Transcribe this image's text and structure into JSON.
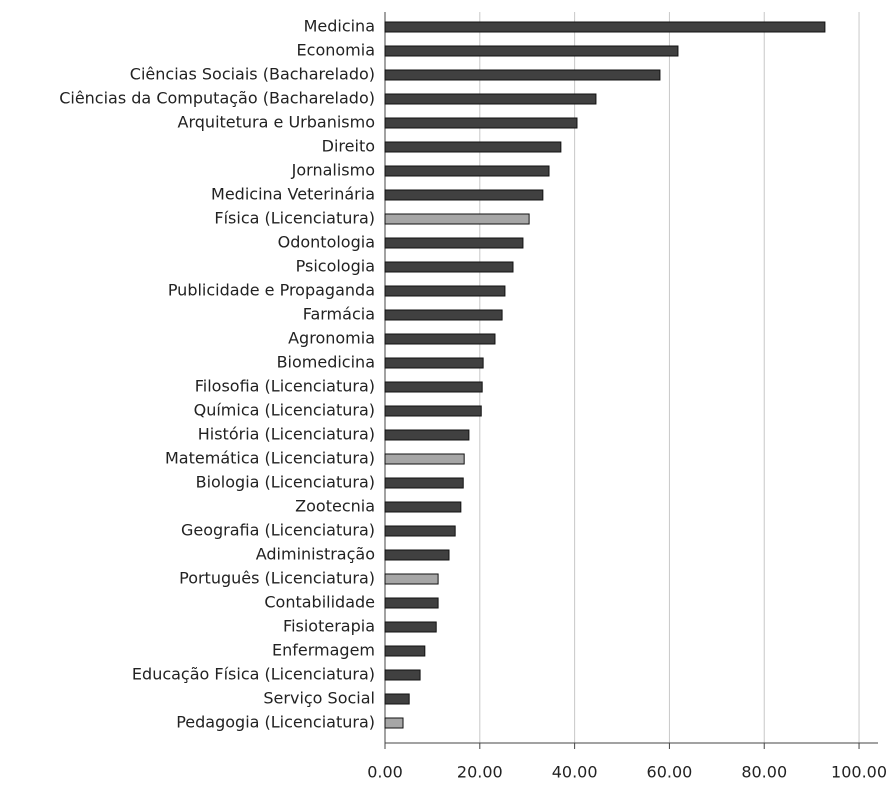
{
  "chart_data": {
    "type": "bar",
    "orientation": "horizontal",
    "categories": [
      "Medicina",
      "Economia",
      "Ciências Sociais (Bacharelado)",
      "Ciências da Computação (Bacharelado)",
      "Arquitetura e Urbanismo",
      "Direito",
      "Jornalismo",
      "Medicina Veterinária",
      "Física (Licenciatura)",
      "Odontologia",
      "Psicologia",
      "Publicidade e Propaganda",
      "Farmácia",
      "Agronomia",
      "Biomedicina",
      "Filosofia (Licenciatura)",
      "Química (Licenciatura)",
      "História (Licenciatura)",
      "Matemática (Licenciatura)",
      "Biologia (Licenciatura)",
      "Zootecnia",
      "Geografia (Licenciatura)",
      "Adiministração",
      "Português (Licenciatura)",
      "Contabilidade",
      "Fisioterapia",
      "Enfermagem",
      "Educação Física (Licenciatura)",
      "Serviço Social",
      "Pedagogia (Licenciatura)"
    ],
    "values": [
      92.8,
      61.8,
      58.0,
      44.5,
      40.5,
      37.1,
      34.6,
      33.3,
      30.4,
      29.1,
      27.0,
      25.3,
      24.7,
      23.2,
      20.7,
      20.5,
      20.3,
      17.7,
      16.7,
      16.5,
      16.0,
      14.8,
      13.5,
      11.2,
      11.2,
      10.8,
      8.4,
      7.4,
      5.1,
      3.8
    ],
    "colors": [
      "#404040",
      "#404040",
      "#404040",
      "#404040",
      "#404040",
      "#404040",
      "#404040",
      "#404040",
      "#a6a6a6",
      "#404040",
      "#404040",
      "#404040",
      "#404040",
      "#404040",
      "#404040",
      "#404040",
      "#404040",
      "#404040",
      "#a6a6a6",
      "#404040",
      "#404040",
      "#404040",
      "#404040",
      "#a6a6a6",
      "#404040",
      "#404040",
      "#404040",
      "#404040",
      "#404040",
      "#a6a6a6"
    ],
    "xlim": [
      0,
      104
    ],
    "xticks": [
      {
        "value": 0,
        "label": "0.00"
      },
      {
        "value": 20,
        "label": "20.00"
      },
      {
        "value": 40,
        "label": "40.00"
      },
      {
        "value": 60,
        "label": "60.00"
      },
      {
        "value": 80,
        "label": "80.00"
      },
      {
        "value": 100,
        "label": "100.00"
      }
    ],
    "grid": true
  }
}
